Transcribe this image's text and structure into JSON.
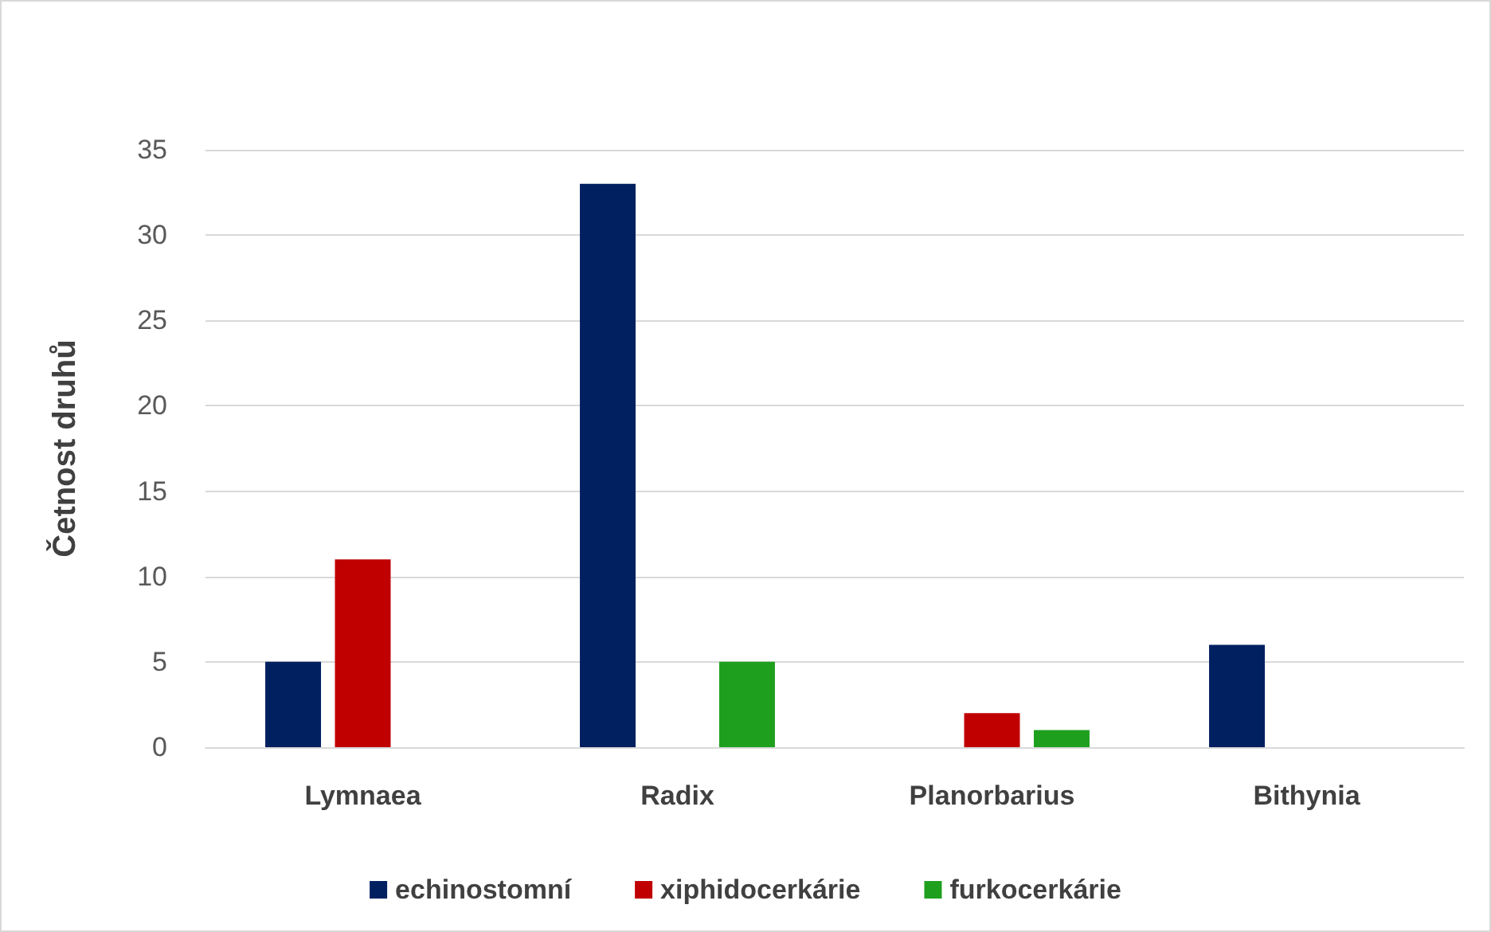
{
  "chart_data": {
    "type": "bar",
    "ylabel": "Četnost druhů",
    "categories": [
      "Lymnaea",
      "Radix",
      "Planorbarius",
      "Bithynia"
    ],
    "series": [
      {
        "name": "echinostomní",
        "color": "#002060",
        "values": [
          5,
          33,
          0,
          6
        ]
      },
      {
        "name": "xiphidocerkárie",
        "color": "#c00000",
        "values": [
          11,
          0,
          2,
          0
        ]
      },
      {
        "name": "furkocerkárie",
        "color": "#1ea01e",
        "values": [
          0,
          5,
          1,
          0
        ]
      }
    ],
    "ylim": [
      0,
      35
    ],
    "yticks": [
      0,
      5,
      10,
      15,
      20,
      25,
      30,
      35
    ],
    "grid": "y",
    "legend": "bottom"
  }
}
